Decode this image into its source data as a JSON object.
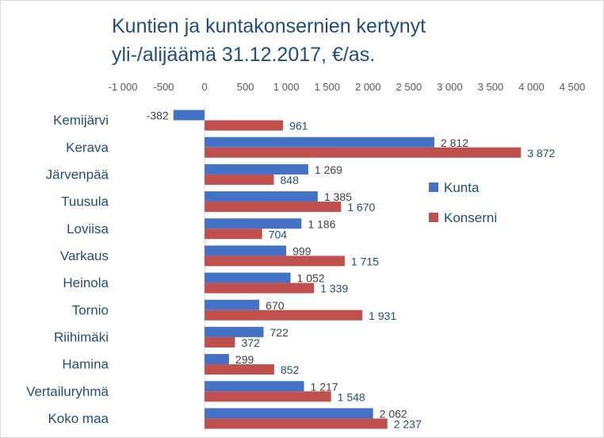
{
  "chart_data": {
    "type": "bar",
    "orientation": "horizontal",
    "title": [
      "Kuntien ja kuntakonsernien kertynyt",
      "yli-/alijäämä 31.12.2017, €/as."
    ],
    "categories": [
      "Kemijärvi",
      "Kerava",
      "Järvenpää",
      "Tuusula",
      "Loviisa",
      "Varkaus",
      "Heinola",
      "Tornio",
      "Riihimäki",
      "Hamina",
      "Vertailuryhmä",
      "Koko maa"
    ],
    "series": [
      {
        "name": "Kunta",
        "color": "#4472c4",
        "values": [
          -382,
          2812,
          1269,
          1385,
          1186,
          999,
          1052,
          670,
          722,
          299,
          1217,
          2062
        ],
        "labels": [
          "-382",
          "2 812",
          "1 269",
          "1 385",
          "1 186",
          "999",
          "1 052",
          "670",
          "722",
          "299",
          "1 217",
          "2 062"
        ]
      },
      {
        "name": "Konserni",
        "color": "#c0504d",
        "values": [
          961,
          3872,
          848,
          1670,
          704,
          1715,
          1339,
          1931,
          372,
          852,
          1548,
          2237
        ],
        "labels": [
          "961",
          "3 872",
          "848",
          "1 670",
          "704",
          "1 715",
          "1 339",
          "1 931",
          "372",
          "852",
          "1 548",
          "2 237"
        ]
      }
    ],
    "xlim": [
      -1000,
      4500
    ],
    "ticks": [
      -1000,
      -500,
      0,
      500,
      1000,
      1500,
      2000,
      2500,
      3000,
      3500,
      4000,
      4500
    ],
    "tick_labels": [
      "-1 000",
      "-500",
      "0",
      "500",
      "1 000",
      "1 500",
      "2 000",
      "2 500",
      "3 000",
      "3 500",
      "4 000",
      "4 500"
    ],
    "grid": false,
    "legend_position": "right"
  }
}
